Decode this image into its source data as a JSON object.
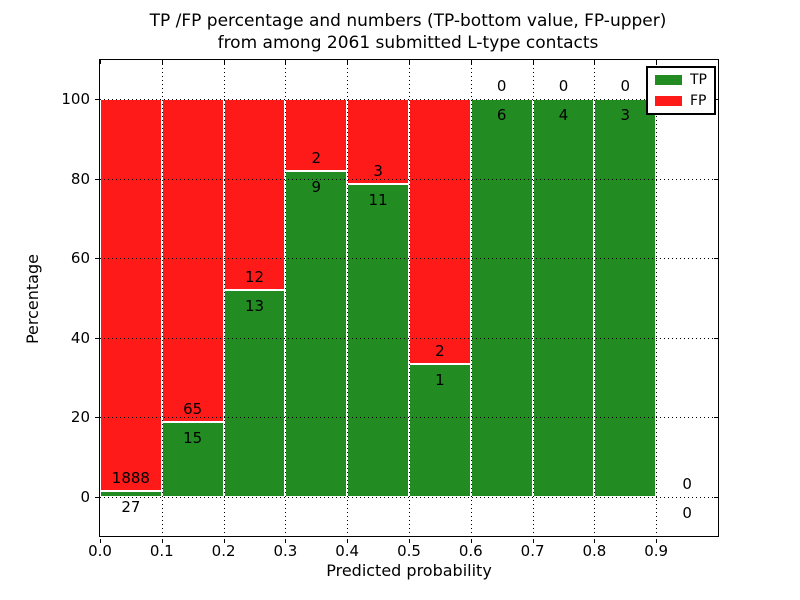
{
  "title": {
    "line1": "TP /FP percentage and numbers (TP-bottom value, FP-upper)",
    "line2": "from among 2061 submitted L-type contacts"
  },
  "axes": {
    "xlabel": "Predicted probability",
    "ylabel": "Percentage",
    "x_ticks": [
      "0.0",
      "0.1",
      "0.2",
      "0.3",
      "0.4",
      "0.5",
      "0.6",
      "0.7",
      "0.8",
      "0.9"
    ],
    "y_ticks": [
      "0",
      "20",
      "40",
      "60",
      "80",
      "100"
    ],
    "xlim": [
      0.0,
      1.0
    ],
    "ylim": [
      -10,
      110
    ],
    "grid_style": "dotted"
  },
  "legend": {
    "position": "upper right",
    "items": [
      {
        "label": "TP",
        "color": "#228b22"
      },
      {
        "label": "FP",
        "color": "#ff1a1a"
      }
    ]
  },
  "chart_data": {
    "type": "bar",
    "stacked": true,
    "normalized": "percent of bin total",
    "total_contacts": 2061,
    "bin_width": 0.1,
    "categories": [
      "0.0-0.1",
      "0.1-0.2",
      "0.2-0.3",
      "0.3-0.4",
      "0.4-0.5",
      "0.5-0.6",
      "0.6-0.7",
      "0.7-0.8",
      "0.8-0.9",
      "0.9-1.0"
    ],
    "series": [
      {
        "name": "TP",
        "color": "#228b22",
        "counts": [
          27,
          15,
          13,
          9,
          11,
          1,
          6,
          4,
          3,
          0
        ],
        "percent": [
          1.4,
          18.8,
          52.0,
          81.8,
          78.6,
          33.3,
          100.0,
          100.0,
          100.0,
          0.0
        ]
      },
      {
        "name": "FP",
        "color": "#ff1a1a",
        "counts": [
          1888,
          65,
          12,
          2,
          3,
          2,
          0,
          0,
          0,
          0
        ],
        "percent": [
          98.6,
          81.2,
          48.0,
          18.2,
          21.4,
          66.7,
          0.0,
          0.0,
          0.0,
          0.0
        ]
      }
    ],
    "title": "TP /FP percentage and numbers (TP-bottom value, FP-upper) from among 2061 submitted L-type contacts",
    "xlabel": "Predicted probability",
    "ylabel": "Percentage"
  }
}
